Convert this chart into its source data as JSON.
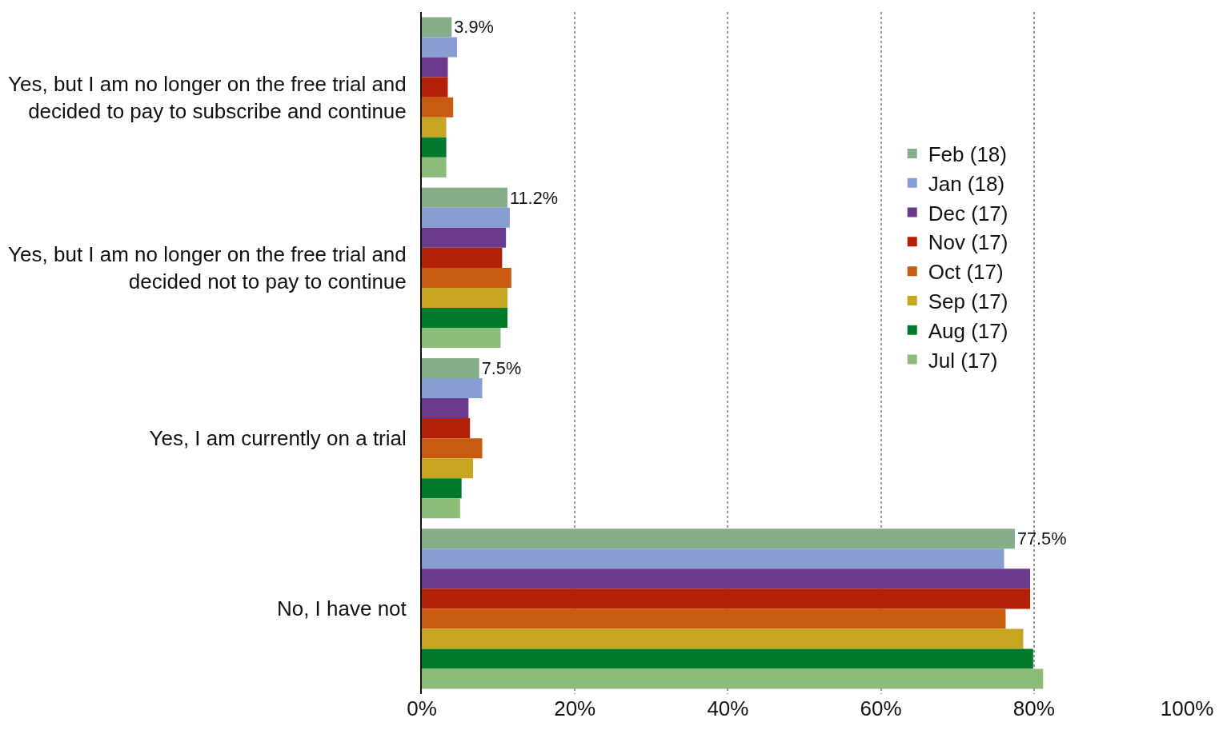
{
  "chart_data": {
    "type": "bar",
    "orientation": "horizontal",
    "categories": [
      "Yes, but I am no longer on the free trial and decided to pay to subscribe and continue",
      "Yes, but I am no longer on the free trial and decided not to pay to continue",
      "Yes, I am currently on a trial",
      "No, I have not"
    ],
    "series": [
      {
        "name": "Feb (18)",
        "color": "#84ad88",
        "values": [
          3.9,
          11.2,
          7.5,
          77.5
        ],
        "value_labels": [
          "3.9%",
          "11.2%",
          "7.5%",
          "77.5%"
        ]
      },
      {
        "name": "Jan (18)",
        "color": "#869ed4",
        "values": [
          4.6,
          11.5,
          7.9,
          76.1
        ]
      },
      {
        "name": "Dec (17)",
        "color": "#6a3a8c",
        "values": [
          3.4,
          11.0,
          6.1,
          79.5
        ]
      },
      {
        "name": "Nov (17)",
        "color": "#b22007",
        "values": [
          3.4,
          10.5,
          6.3,
          79.5
        ]
      },
      {
        "name": "Oct (17)",
        "color": "#c85b10",
        "values": [
          4.1,
          11.7,
          7.9,
          76.3
        ]
      },
      {
        "name": "Sep (17)",
        "color": "#c6a521",
        "values": [
          3.2,
          11.2,
          6.7,
          78.6
        ]
      },
      {
        "name": "Aug (17)",
        "color": "#017a2c",
        "values": [
          3.2,
          11.2,
          5.2,
          79.9
        ]
      },
      {
        "name": "Jul (17)",
        "color": "#8bbd78",
        "values": [
          3.2,
          10.3,
          5.0,
          81.2
        ]
      }
    ],
    "xlim": [
      0,
      100
    ],
    "xticks": [
      {
        "value": 0,
        "label": "0%"
      },
      {
        "value": 20,
        "label": "20%"
      },
      {
        "value": 40,
        "label": "40%"
      },
      {
        "value": 60,
        "label": "60%"
      },
      {
        "value": 80,
        "label": "80%"
      },
      {
        "value": 100,
        "label": "100%"
      }
    ],
    "grid": "x",
    "legend": "right"
  }
}
